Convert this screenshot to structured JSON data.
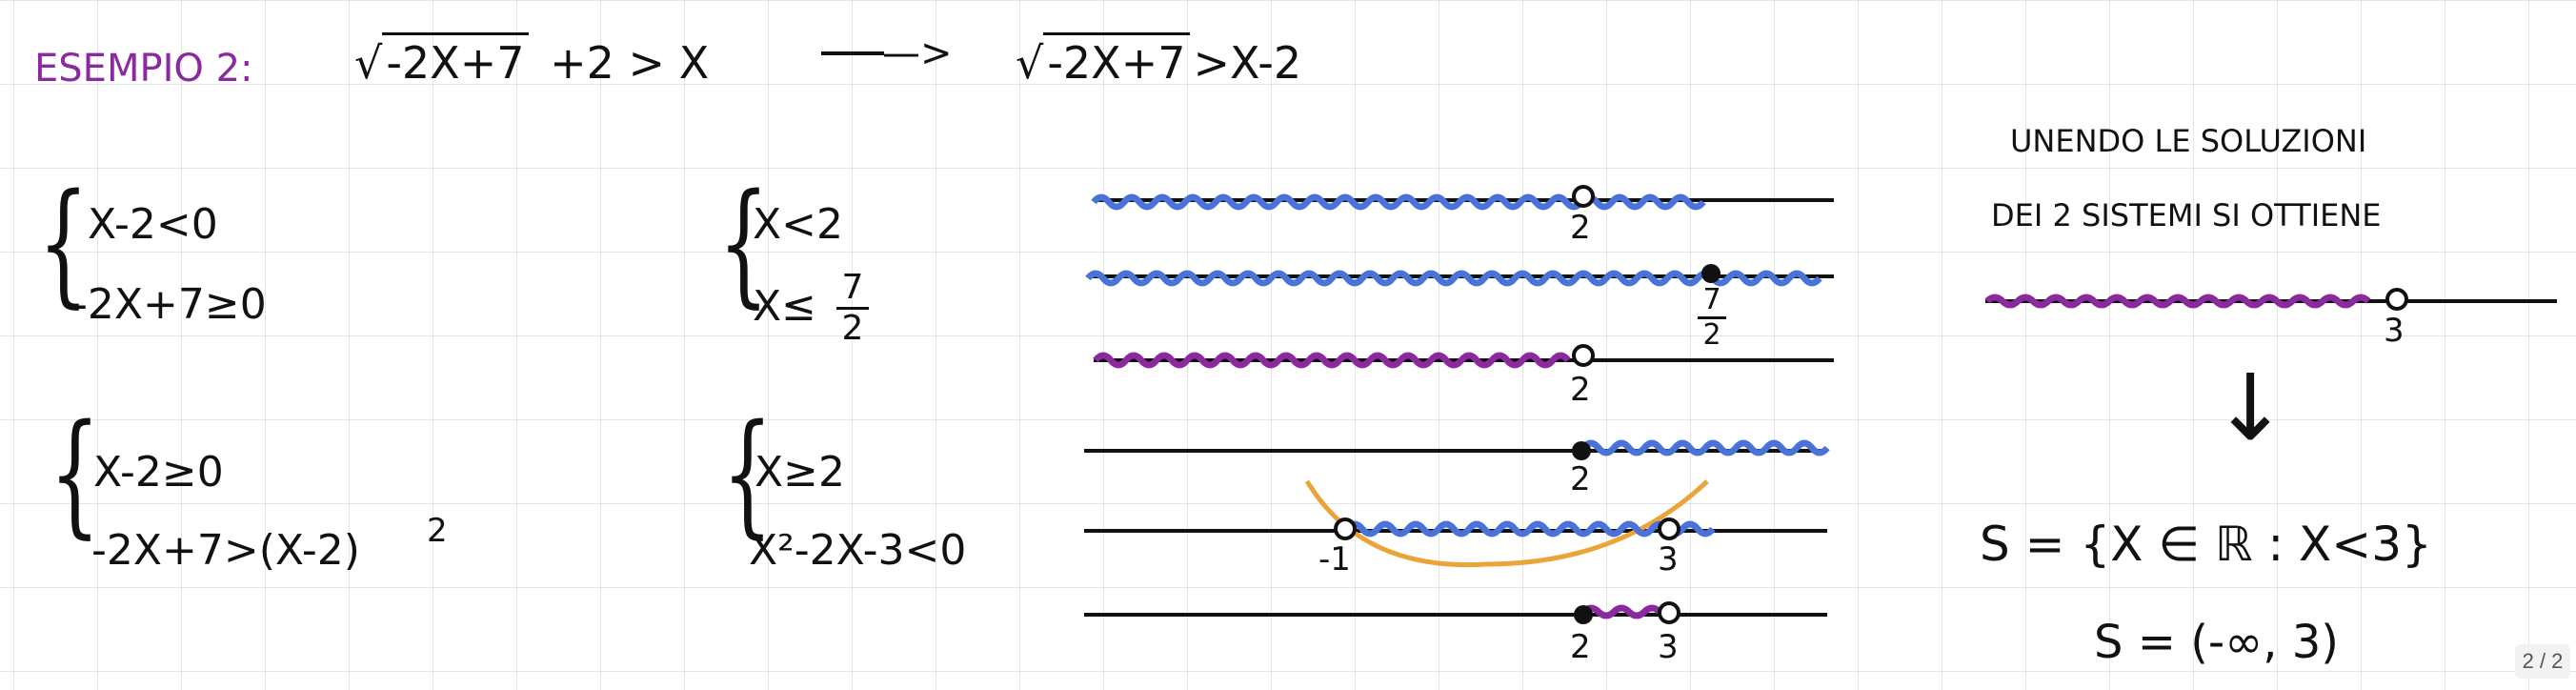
{
  "example": {
    "title": "ESEMPIO 2:",
    "inequality_radicand": "-2X+7",
    "inequality_rest": "+2 > X",
    "arrow": "—>",
    "rewritten_radicand": "-2X+7",
    "rewritten_rest": ">X-2"
  },
  "system1": {
    "line1": "X-2<0",
    "line2": "-2X+7≥0",
    "simplified_line1": "X<2",
    "simplified_line2_prefix": "X≤",
    "simplified_line2_num": "7",
    "simplified_line2_den": "2"
  },
  "system2": {
    "line1": "X-2≥0",
    "line2": "-2X+7>(X-2)",
    "line2_exp": "2",
    "simplified_line1": "X≥2",
    "simplified_line2": "X²-2X-3<0"
  },
  "number_lines": {
    "l1_label": "2",
    "l2_label_num": "7",
    "l2_label_den": "2",
    "l3_label": "2",
    "l4_label": "2",
    "l5_label_left": "-1",
    "l5_label_right": "3",
    "l6_label_left": "2",
    "l6_label_right": "3"
  },
  "conclusion": {
    "line1": "UNENDO LE SOLUZIONI",
    "line2": "DEI 2 SISTEMI SI OTTIENE",
    "line_label": "3",
    "down_arrow": "↓",
    "solution_set": "S = {X ∈ ℝ : X<3}",
    "interval": "S = (-∞, 3)"
  },
  "page_counter": "2 / 2",
  "colors": {
    "purple": "#8a2a9e",
    "blue": "#4a73d9",
    "orange": "#eba43a",
    "ink": "#111111"
  }
}
